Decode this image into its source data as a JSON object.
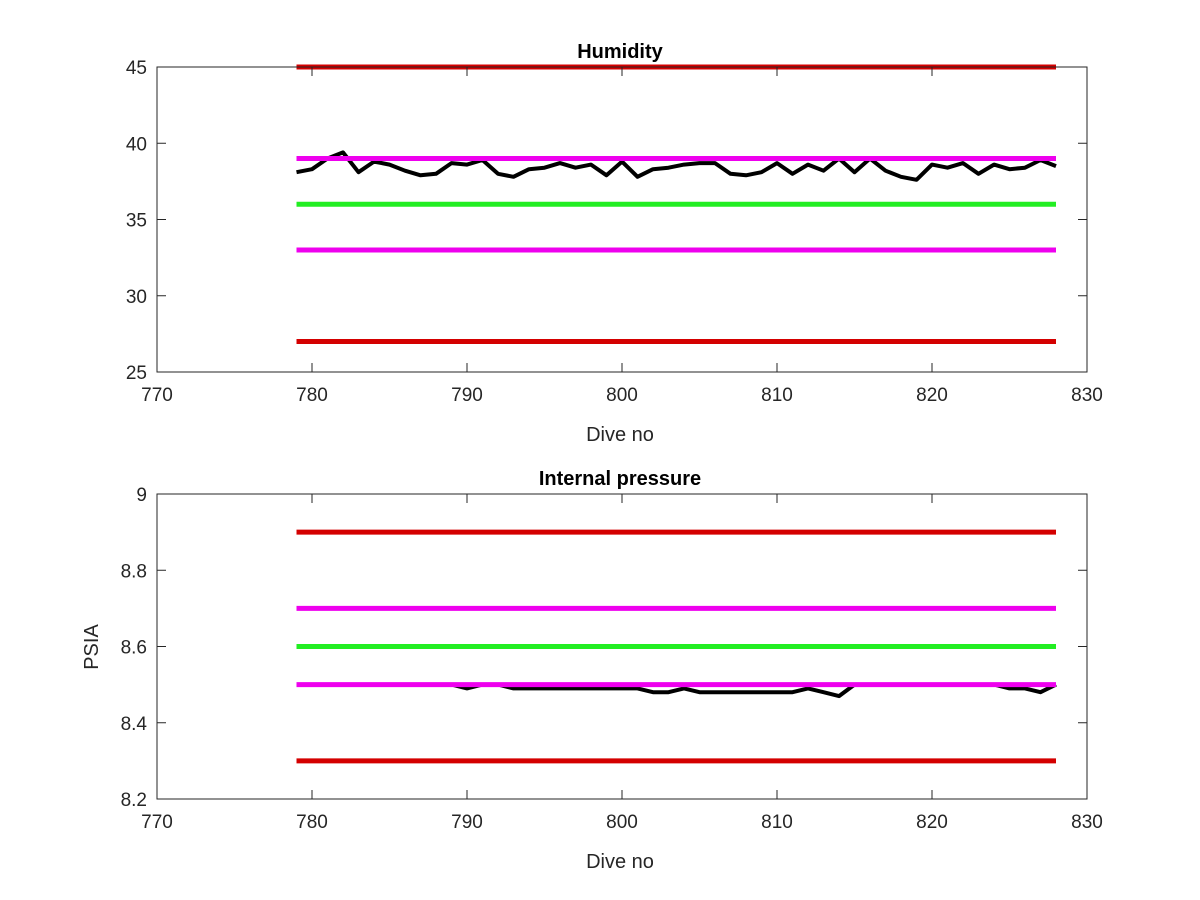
{
  "colors": {
    "red": "#d40000",
    "magenta": "#ee00ee",
    "green": "#22ee22",
    "data": "#000000",
    "axis": "#262626",
    "background": "#ffffff"
  },
  "chart_data": [
    {
      "type": "line",
      "title": "Humidity",
      "xlabel": "Dive no",
      "ylabel": "",
      "xlim": [
        770,
        830
      ],
      "ylim": [
        25,
        45
      ],
      "xticks": [
        "770",
        "780",
        "790",
        "800",
        "810",
        "820",
        "830"
      ],
      "yticks": [
        "25",
        "30",
        "35",
        "40",
        "45"
      ],
      "grid": false,
      "series": [
        {
          "color": "#000000",
          "x": [
            779,
            780,
            781,
            782,
            783,
            784,
            785,
            786,
            787,
            788,
            789,
            790,
            791,
            792,
            793,
            794,
            795,
            796,
            797,
            798,
            799,
            800,
            801,
            802,
            803,
            804,
            805,
            806,
            807,
            808,
            809,
            810,
            811,
            812,
            813,
            814,
            815,
            816,
            817,
            818,
            819,
            820,
            821,
            822,
            823,
            824,
            825,
            826,
            827,
            828
          ],
          "y": [
            38.1,
            38.3,
            39.0,
            39.4,
            38.1,
            38.8,
            38.6,
            38.2,
            37.9,
            38.0,
            38.7,
            38.6,
            38.9,
            38.0,
            37.8,
            38.3,
            38.4,
            38.7,
            38.4,
            38.6,
            37.9,
            38.8,
            37.8,
            38.3,
            38.4,
            38.6,
            38.7,
            38.7,
            38.0,
            37.9,
            38.1,
            38.7,
            38.0,
            38.6,
            38.2,
            39.0,
            38.1,
            39.0,
            38.2,
            37.8,
            37.6,
            38.6,
            38.4,
            38.7,
            38.0,
            38.6,
            38.3,
            38.4,
            38.9,
            38.5
          ]
        },
        {
          "color": "#d40000",
          "x": [
            779,
            828
          ],
          "y": [
            45,
            45
          ]
        },
        {
          "color": "#ee00ee",
          "x": [
            779,
            828
          ],
          "y": [
            39,
            39
          ]
        },
        {
          "color": "#22ee22",
          "x": [
            779,
            828
          ],
          "y": [
            36,
            36
          ]
        },
        {
          "color": "#ee00ee",
          "x": [
            779,
            828
          ],
          "y": [
            33,
            33
          ]
        },
        {
          "color": "#d40000",
          "x": [
            779,
            828
          ],
          "y": [
            27,
            27
          ]
        }
      ]
    },
    {
      "type": "line",
      "title": "Internal pressure",
      "xlabel": "Dive no",
      "ylabel": "PSIA",
      "xlim": [
        770,
        830
      ],
      "ylim": [
        8.2,
        9.0
      ],
      "xticks": [
        "770",
        "780",
        "790",
        "800",
        "810",
        "820",
        "830"
      ],
      "yticks": [
        "8.2",
        "8.4",
        "8.6",
        "8.8",
        "9"
      ],
      "grid": false,
      "series": [
        {
          "color": "#000000",
          "x": [
            779,
            780,
            781,
            782,
            783,
            784,
            785,
            786,
            787,
            788,
            789,
            790,
            791,
            792,
            793,
            794,
            795,
            796,
            797,
            798,
            799,
            800,
            801,
            802,
            803,
            804,
            805,
            806,
            807,
            808,
            809,
            810,
            811,
            812,
            813,
            814,
            815,
            816,
            817,
            818,
            819,
            820,
            821,
            822,
            823,
            824,
            825,
            826,
            827,
            828
          ],
          "y": [
            8.5,
            8.5,
            8.5,
            8.5,
            8.5,
            8.5,
            8.5,
            8.5,
            8.5,
            8.5,
            8.5,
            8.49,
            8.5,
            8.5,
            8.49,
            8.49,
            8.49,
            8.49,
            8.49,
            8.49,
            8.49,
            8.49,
            8.49,
            8.48,
            8.48,
            8.49,
            8.48,
            8.48,
            8.48,
            8.48,
            8.48,
            8.48,
            8.48,
            8.49,
            8.48,
            8.47,
            8.5,
            8.5,
            8.5,
            8.5,
            8.5,
            8.5,
            8.5,
            8.5,
            8.5,
            8.5,
            8.49,
            8.49,
            8.48,
            8.5
          ]
        },
        {
          "color": "#d40000",
          "x": [
            779,
            828
          ],
          "y": [
            8.9,
            8.9
          ]
        },
        {
          "color": "#ee00ee",
          "x": [
            779,
            828
          ],
          "y": [
            8.7,
            8.7
          ]
        },
        {
          "color": "#22ee22",
          "x": [
            779,
            828
          ],
          "y": [
            8.6,
            8.6
          ]
        },
        {
          "color": "#ee00ee",
          "x": [
            779,
            828
          ],
          "y": [
            8.5,
            8.5
          ]
        },
        {
          "color": "#d40000",
          "x": [
            779,
            828
          ],
          "y": [
            8.3,
            8.3
          ]
        }
      ]
    }
  ]
}
